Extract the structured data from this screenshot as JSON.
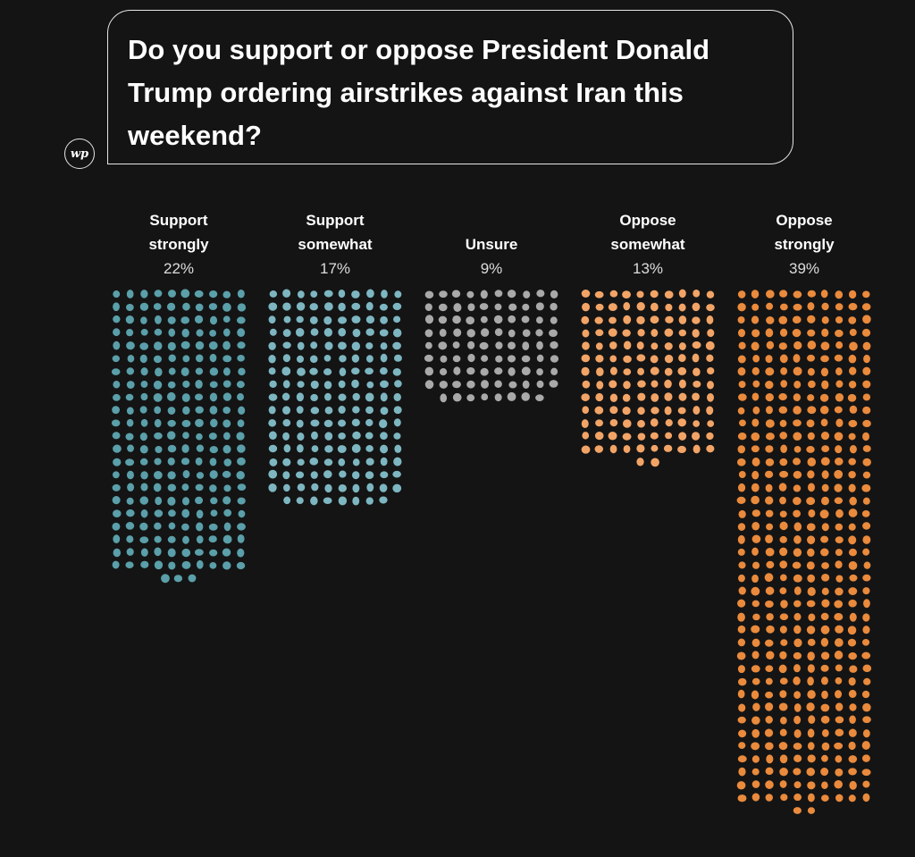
{
  "title": "Do you support or oppose President Donald Trump ordering airstrikes against Iran this weekend?",
  "logo_text": "wp",
  "chart_data": {
    "type": "unit dot chart",
    "categories": [
      "Support strongly",
      "Support somewhat",
      "Unsure",
      "Oppose somewhat",
      "Oppose strongly"
    ],
    "values_percent": [
      "22%",
      "17%",
      "9%",
      "13%",
      "39%"
    ],
    "dot_counts": [
      223,
      168,
      88,
      132,
      402
    ],
    "colors": [
      "#5a9fa9",
      "#7db6c1",
      "#a9a9a9",
      "#f2a466",
      "#ea8a3c"
    ],
    "background": "#141414"
  }
}
